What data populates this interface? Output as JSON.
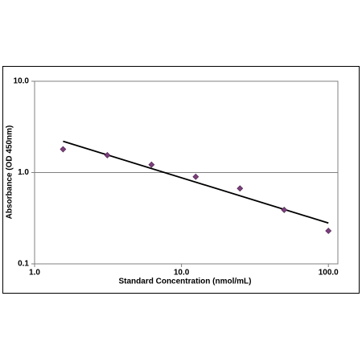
{
  "chart_data": {
    "type": "scatter",
    "x_label": "Standard Concentration (nmol/mL)",
    "y_label": "Absorbance (OD 450nm)",
    "x": [
      1.5625,
      3.125,
      6.25,
      12.5,
      25,
      50,
      100
    ],
    "values": [
      1.8,
      1.55,
      1.22,
      0.9,
      0.67,
      0.39,
      0.23
    ],
    "color": "#7b3f7b",
    "trendline": {
      "x": [
        1.5625,
        100
      ],
      "values": [
        2.2,
        0.28
      ],
      "color": "#000000"
    },
    "xscale": "log",
    "yscale": "log",
    "xlim": [
      1,
      116
    ],
    "ylim": [
      0.1,
      10
    ],
    "xticks": [
      {
        "value": 1,
        "label": "1.0"
      },
      {
        "value": 10,
        "label": "10.0"
      },
      {
        "value": 100,
        "label": "100.0"
      }
    ],
    "yticks": [
      0.1,
      {
        "value": 1,
        "label": "1.0"
      },
      {
        "value": 10,
        "label": "10.0"
      }
    ],
    "grid": true
  }
}
